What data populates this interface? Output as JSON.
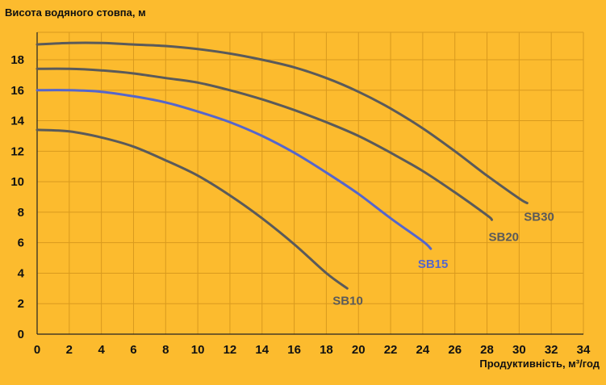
{
  "chart_data": {
    "type": "line",
    "title": "",
    "ylabel": "Висота водяного стовпа, м",
    "xlabel": "Продуктивність, м³/год",
    "xlim": [
      0,
      34
    ],
    "ylim": [
      0,
      19
    ],
    "x_ticks": [
      0,
      2,
      4,
      6,
      8,
      10,
      12,
      14,
      16,
      18,
      20,
      22,
      24,
      26,
      28,
      30,
      32,
      34
    ],
    "y_ticks": [
      0,
      2,
      4,
      6,
      8,
      10,
      12,
      14,
      16,
      18
    ],
    "grid": true,
    "series": [
      {
        "name": "SB10",
        "color": "#5A5A5A",
        "x": [
          0,
          2,
          4,
          6,
          8,
          10,
          12,
          14,
          16,
          18,
          19.3
        ],
        "y": [
          13.4,
          13.3,
          12.9,
          12.3,
          11.4,
          10.4,
          9.1,
          7.6,
          5.9,
          4.0,
          3.0
        ]
      },
      {
        "name": "SB15",
        "color": "#5566CC",
        "x": [
          0,
          2,
          4,
          6,
          8,
          10,
          12,
          14,
          16,
          18,
          20,
          22,
          24,
          24.5
        ],
        "y": [
          16.0,
          16.0,
          15.9,
          15.6,
          15.2,
          14.6,
          13.9,
          13.0,
          11.9,
          10.6,
          9.2,
          7.6,
          6.1,
          5.6
        ]
      },
      {
        "name": "SB20",
        "color": "#5A5A5A",
        "x": [
          0,
          2,
          4,
          6,
          8,
          10,
          12,
          14,
          16,
          18,
          20,
          22,
          24,
          26,
          28,
          28.3
        ],
        "y": [
          17.4,
          17.4,
          17.3,
          17.1,
          16.8,
          16.5,
          16.0,
          15.4,
          14.7,
          13.9,
          13.0,
          11.9,
          10.7,
          9.3,
          7.8,
          7.5
        ]
      },
      {
        "name": "SB30",
        "color": "#5A5A5A",
        "x": [
          0,
          2,
          4,
          6,
          8,
          10,
          12,
          14,
          16,
          18,
          20,
          22,
          24,
          26,
          28,
          30,
          30.5
        ],
        "y": [
          19.0,
          19.1,
          19.1,
          19.0,
          18.9,
          18.7,
          18.4,
          18.0,
          17.5,
          16.8,
          15.9,
          14.8,
          13.5,
          12.0,
          10.4,
          8.9,
          8.6
        ]
      }
    ]
  }
}
